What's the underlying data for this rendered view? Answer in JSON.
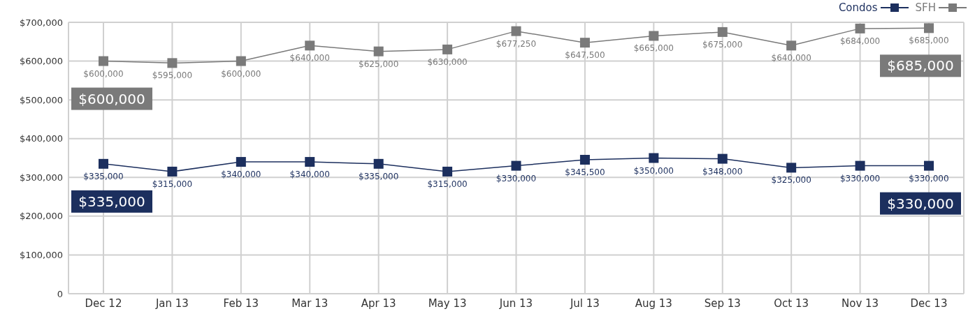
{
  "chart_data": {
    "type": "line",
    "categories": [
      "Dec 12",
      "Jan 13",
      "Feb 13",
      "Mar 13",
      "Apr 13",
      "May 13",
      "Jun 13",
      "Jul 13",
      "Aug 13",
      "Sep 13",
      "Oct 13",
      "Nov 13",
      "Dec 13"
    ],
    "series": [
      {
        "name": "Condos",
        "color": "#1c2f5e",
        "values": [
          335000,
          315000,
          340000,
          340000,
          335000,
          315000,
          330000,
          345500,
          350000,
          348000,
          325000,
          330000,
          330000
        ],
        "value_labels": [
          "$335,000",
          "$315,000",
          "$340,000",
          "$340,000",
          "$335,000",
          "$315,000",
          "$330,000",
          "$345,500",
          "$350,000",
          "$348,000",
          "$325,000",
          "$330,000",
          "$330,000"
        ]
      },
      {
        "name": "SFH",
        "color": "#7a7a7a",
        "values": [
          600000,
          595000,
          600000,
          640000,
          625000,
          630000,
          677250,
          647500,
          665000,
          675000,
          640000,
          684000,
          685000
        ],
        "value_labels": [
          "$600,000",
          "$595,000",
          "$600,000",
          "$640,000",
          "$625,000",
          "$630,000",
          "$677,250",
          "$647,500",
          "$665,000",
          "$675,000",
          "$640,000",
          "$684,000",
          "$685,000"
        ]
      }
    ],
    "ylim": [
      0,
      700000
    ],
    "yticks": [
      {
        "value": 0,
        "label": "0"
      },
      {
        "value": 100000,
        "label": "$100,000"
      },
      {
        "value": 200000,
        "label": "$200,000"
      },
      {
        "value": 300000,
        "label": "$300,000"
      },
      {
        "value": 400000,
        "label": "$400,000"
      },
      {
        "value": 500000,
        "label": "$500,000"
      },
      {
        "value": 600000,
        "label": "$600,000"
      },
      {
        "value": 700000,
        "label": "$700,000"
      }
    ],
    "annotations": [
      {
        "text": "$600,000",
        "x": "Dec 12",
        "y": 600000
      },
      {
        "text": "$685,000",
        "x": "Dec 13",
        "y": 685000
      },
      {
        "text": "$335,000",
        "x": "Dec 12",
        "y": 335000
      },
      {
        "text": "$330,000",
        "x": "Dec 13",
        "y": 330000
      }
    ],
    "grid": true,
    "legend": "top right",
    "marker": "square",
    "line_style": "solid"
  }
}
